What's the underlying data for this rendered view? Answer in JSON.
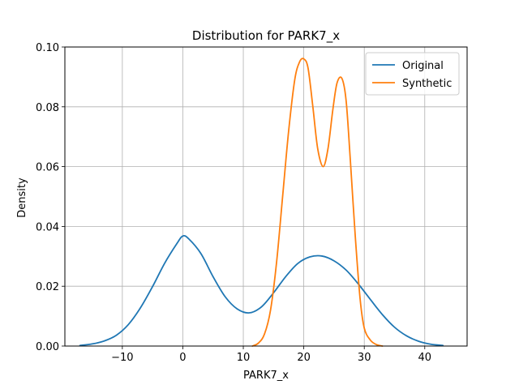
{
  "chart_data": {
    "type": "line",
    "title": "Distribution for PARK7_x",
    "xlabel": "PARK7_x",
    "ylabel": "Density",
    "xlim": [
      -19.5,
      47
    ],
    "ylim": [
      0,
      0.1
    ],
    "xticks": [
      -10,
      0,
      10,
      20,
      30,
      40
    ],
    "yticks": [
      0.0,
      0.02,
      0.04,
      0.06,
      0.08,
      0.1
    ],
    "xtick_labels": [
      "−10",
      "0",
      "10",
      "20",
      "30",
      "40"
    ],
    "ytick_labels": [
      "0.00",
      "0.02",
      "0.04",
      "0.06",
      "0.08",
      "0.10"
    ],
    "grid": true,
    "legend_position": "top-right",
    "series": [
      {
        "name": "Original",
        "color": "#1f77b4",
        "x": [
          -17,
          -15,
          -13,
          -11,
          -9,
          -7,
          -5,
          -3,
          -1,
          0,
          1,
          3,
          5,
          7,
          9,
          11,
          13,
          15,
          17,
          19,
          21,
          23,
          25,
          27,
          29,
          31,
          33,
          35,
          37,
          39,
          41,
          43
        ],
        "y": [
          0.0002,
          0.0007,
          0.0017,
          0.0036,
          0.0072,
          0.0128,
          0.0199,
          0.0277,
          0.0342,
          0.0368,
          0.0358,
          0.0309,
          0.0232,
          0.0165,
          0.0124,
          0.0111,
          0.0131,
          0.0178,
          0.0232,
          0.0276,
          0.0298,
          0.0301,
          0.0285,
          0.0254,
          0.0208,
          0.0156,
          0.0105,
          0.0063,
          0.0034,
          0.0016,
          0.0006,
          0.0002
        ]
      },
      {
        "name": "Synthetic",
        "color": "#ff7f0e",
        "x": [
          11.5,
          12.5,
          13.5,
          14.5,
          15.5,
          16.5,
          17.5,
          18.5,
          19.3,
          20,
          20.7,
          21.5,
          22.3,
          23.2,
          24,
          24.8,
          25.5,
          26.3,
          27,
          27.7,
          28.5,
          29.3,
          30,
          31,
          32,
          33
        ],
        "y": [
          0.0,
          0.001,
          0.004,
          0.012,
          0.028,
          0.05,
          0.072,
          0.089,
          0.095,
          0.096,
          0.093,
          0.08,
          0.066,
          0.06,
          0.066,
          0.079,
          0.088,
          0.0895,
          0.082,
          0.062,
          0.037,
          0.016,
          0.006,
          0.002,
          0.0005,
          0.0
        ]
      }
    ]
  }
}
